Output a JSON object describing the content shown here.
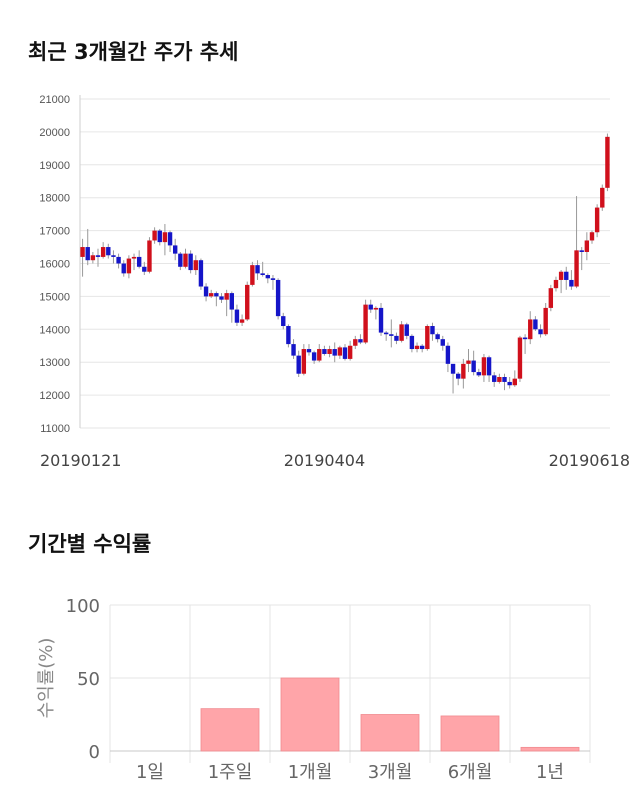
{
  "section1": {
    "title": "최근 3개월간 주가 추세"
  },
  "section2": {
    "title": "기간별 수익률"
  },
  "chart_data": [
    {
      "type": "candlestick",
      "title": "최근 3개월간 주가 추세",
      "ylim": [
        11000,
        21000
      ],
      "yticks": [
        11000,
        12000,
        13000,
        14000,
        15000,
        16000,
        17000,
        18000,
        19000,
        20000,
        21000
      ],
      "xtick_labels": [
        {
          "index": 0,
          "label": "20190121"
        },
        {
          "index": 47,
          "label": "20190404"
        },
        {
          "index": 96,
          "label": "20190618"
        }
      ],
      "colors": {
        "up": "#d0101c",
        "down": "#1515c8"
      },
      "candles": [
        [
          16200,
          16500,
          15600,
          16750
        ],
        [
          16500,
          16100,
          15950,
          17050
        ],
        [
          16100,
          16250,
          16000,
          16350
        ],
        [
          16250,
          16200,
          15900,
          16450
        ],
        [
          16200,
          16500,
          16150,
          16650
        ],
        [
          16500,
          16250,
          16150,
          16600
        ],
        [
          16250,
          16200,
          16000,
          16400
        ],
        [
          16200,
          16000,
          15850,
          16300
        ],
        [
          16000,
          15700,
          15600,
          16100
        ],
        [
          15700,
          16150,
          15550,
          16250
        ],
        [
          16150,
          16200,
          15800,
          16300
        ],
        [
          16200,
          15900,
          15850,
          16400
        ],
        [
          15900,
          15750,
          15650,
          16050
        ],
        [
          15750,
          16700,
          15700,
          16800
        ],
        [
          16700,
          17000,
          16600,
          17100
        ],
        [
          17000,
          16650,
          16550,
          17050
        ],
        [
          16650,
          16950,
          16250,
          17200
        ],
        [
          16950,
          16550,
          16350,
          17000
        ],
        [
          16550,
          16300,
          16100,
          16750
        ],
        [
          16300,
          15900,
          15800,
          16350
        ],
        [
          15900,
          16300,
          15850,
          16450
        ],
        [
          16300,
          15800,
          15700,
          16400
        ],
        [
          15800,
          16100,
          15650,
          16250
        ],
        [
          16100,
          15300,
          15200,
          16150
        ],
        [
          15300,
          15000,
          14850,
          15400
        ],
        [
          15000,
          15100,
          14950,
          15200
        ],
        [
          15100,
          15000,
          14700,
          15150
        ],
        [
          15000,
          14900,
          14800,
          15100
        ],
        [
          14900,
          15100,
          14400,
          15200
        ],
        [
          15100,
          14600,
          14200,
          15150
        ],
        [
          14600,
          14200,
          14100,
          14750
        ],
        [
          14200,
          14300,
          14100,
          14450
        ],
        [
          14300,
          15350,
          14250,
          15450
        ],
        [
          15350,
          15950,
          15300,
          16050
        ],
        [
          15950,
          15700,
          15500,
          16100
        ],
        [
          15700,
          15650,
          15600,
          16050
        ],
        [
          15650,
          15550,
          15400,
          15700
        ],
        [
          15550,
          15500,
          15200,
          15650
        ],
        [
          15500,
          14400,
          14300,
          15550
        ],
        [
          14400,
          14100,
          14000,
          14500
        ],
        [
          14100,
          13550,
          13450,
          14150
        ],
        [
          13550,
          13200,
          13100,
          13700
        ],
        [
          13200,
          12650,
          12550,
          13350
        ],
        [
          12650,
          13400,
          12600,
          13550
        ],
        [
          13400,
          13300,
          13200,
          13550
        ],
        [
          13300,
          13050,
          12950,
          13350
        ],
        [
          13050,
          13400,
          13000,
          13550
        ],
        [
          13400,
          13250,
          13200,
          13500
        ],
        [
          13250,
          13400,
          13150,
          13500
        ],
        [
          13400,
          13200,
          13000,
          13600
        ],
        [
          13200,
          13450,
          13100,
          13500
        ],
        [
          13450,
          13100,
          13050,
          13550
        ],
        [
          13100,
          13500,
          13050,
          13650
        ],
        [
          13500,
          13700,
          13400,
          13800
        ],
        [
          13700,
          13600,
          13550,
          13850
        ],
        [
          13600,
          14750,
          13550,
          14900
        ],
        [
          14750,
          14600,
          14500,
          14900
        ],
        [
          14600,
          14650,
          14300,
          14700
        ],
        [
          14650,
          13900,
          13800,
          14800
        ],
        [
          13900,
          13850,
          13650,
          13950
        ],
        [
          13850,
          13800,
          13450,
          14300
        ],
        [
          13800,
          13650,
          13550,
          13900
        ],
        [
          13650,
          14150,
          13600,
          14250
        ],
        [
          14150,
          13800,
          13700,
          14200
        ],
        [
          13800,
          13400,
          13300,
          13850
        ],
        [
          13400,
          13500,
          13300,
          13600
        ],
        [
          13500,
          13400,
          13300,
          13550
        ],
        [
          13400,
          14100,
          13350,
          14150
        ],
        [
          14100,
          13850,
          13650,
          14200
        ],
        [
          13850,
          13700,
          13600,
          13900
        ],
        [
          13700,
          13500,
          13350,
          13800
        ],
        [
          13500,
          12950,
          12700,
          13600
        ],
        [
          12950,
          12650,
          12050,
          12900
        ],
        [
          12650,
          12500,
          12300,
          12700
        ],
        [
          12500,
          12950,
          12200,
          13100
        ],
        [
          12950,
          13050,
          12700,
          13400
        ],
        [
          13050,
          12700,
          12600,
          13350
        ],
        [
          12700,
          12600,
          12550,
          12800
        ],
        [
          12600,
          13150,
          12400,
          13250
        ],
        [
          13150,
          12600,
          12400,
          13200
        ],
        [
          12600,
          12400,
          12250,
          12700
        ],
        [
          12400,
          12550,
          12350,
          12650
        ],
        [
          12550,
          12400,
          12150,
          12650
        ],
        [
          12400,
          12300,
          12200,
          12550
        ],
        [
          12300,
          12500,
          12250,
          12750
        ],
        [
          12500,
          13750,
          12400,
          13800
        ],
        [
          13750,
          13700,
          13250,
          13850
        ],
        [
          13700,
          14300,
          13550,
          14550
        ],
        [
          14300,
          14000,
          13950,
          14400
        ],
        [
          14000,
          13850,
          13750,
          14150
        ],
        [
          13850,
          14650,
          13800,
          14800
        ],
        [
          14650,
          15250,
          14550,
          15350
        ],
        [
          15250,
          15500,
          15150,
          15600
        ],
        [
          15500,
          15750,
          15100,
          15800
        ],
        [
          15750,
          15500,
          15200,
          15900
        ],
        [
          15500,
          15300,
          15200,
          15800
        ],
        [
          15300,
          16400,
          15250,
          18050
        ],
        [
          16400,
          16350,
          15800,
          16500
        ],
        [
          16350,
          16700,
          16100,
          16950
        ],
        [
          16700,
          16950,
          16600,
          17000
        ],
        [
          16950,
          17700,
          16800,
          17800
        ],
        [
          17700,
          18300,
          17600,
          18400
        ],
        [
          18300,
          19850,
          18200,
          19950
        ]
      ]
    },
    {
      "type": "bar",
      "title": "기간별 수익률",
      "ylabel": "수익률(%)",
      "ylim": [
        0,
        100
      ],
      "yticks": [
        0,
        50,
        100
      ],
      "categories": [
        "1일",
        "1주일",
        "1개월",
        "3개월",
        "6개월",
        "1년"
      ],
      "values": [
        0,
        29,
        50,
        25,
        24,
        2.5
      ],
      "colors": {
        "bar": "#ffa5a9",
        "bar_edge": "#f08a8f"
      }
    }
  ]
}
